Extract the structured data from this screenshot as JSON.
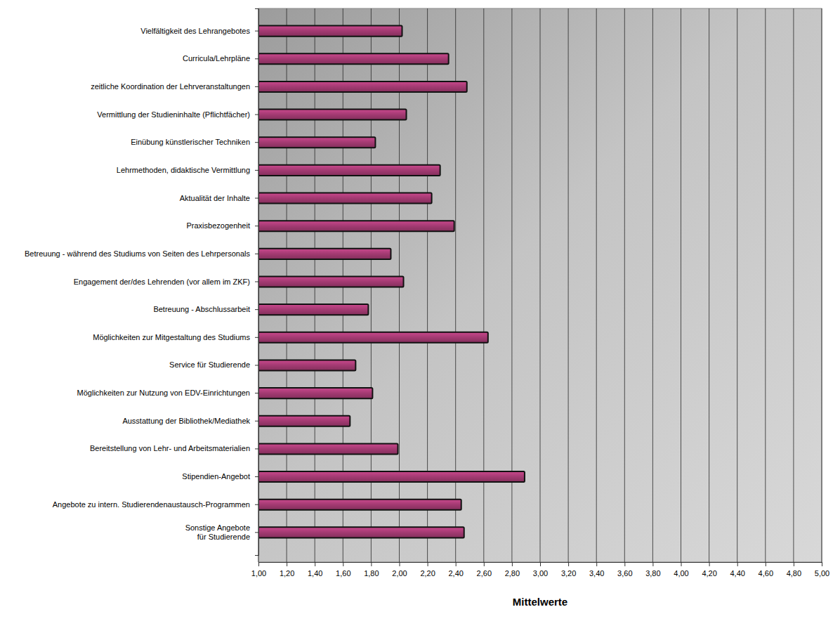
{
  "chart_data": {
    "type": "bar",
    "orientation": "horizontal",
    "categories": [
      "Vielfältigkeit des Lehrangebotes",
      "Curricula/Lehrpläne",
      "zeitliche Koordination der Lehrveranstaltungen",
      "Vermittlung der Studieninhalte (Pflichtfächer)",
      "Einübung künstlerischer Techniken",
      "Lehrmethoden, didaktische Vermittlung",
      "Aktualität der Inhalte",
      "Praxisbezogenheit",
      "Betreuung - während des Studiums von Seiten des Lehrpersonals",
      "Engagement der/des Lehrenden (vor allem im ZKF)",
      "Betreuung - Abschlussarbeit",
      "Möglichkeiten zur Mitgestaltung des Studiums",
      "Service für Studierende",
      "Möglichkeiten zur Nutzung von EDV-Einrichtungen",
      "Ausstattung der Bibliothek/Mediathek",
      "Bereitstellung von Lehr- und Arbeitsmaterialien",
      "Stipendien-Angebot",
      "Angebote zu intern. Studierendenaustausch-Programmen",
      "Sonstige Angebote\nfür Studierende"
    ],
    "values": [
      2.02,
      2.35,
      2.48,
      2.05,
      1.83,
      2.29,
      2.23,
      2.39,
      1.94,
      2.03,
      1.78,
      2.63,
      1.69,
      1.81,
      1.65,
      1.99,
      2.89,
      2.44,
      2.46
    ],
    "color": "#a33a72",
    "xlabel": "Mittelwerte",
    "xlim": [
      1,
      5
    ],
    "xticks": [
      {
        "value": 1,
        "label": "1,00"
      },
      {
        "value": 1.2,
        "label": "1,20"
      },
      {
        "value": 1.4,
        "label": "1,40"
      },
      {
        "value": 1.6,
        "label": "1,60"
      },
      {
        "value": 1.8,
        "label": "1,80"
      },
      {
        "value": 2,
        "label": "2,00"
      },
      {
        "value": 2.2,
        "label": "2,20"
      },
      {
        "value": 2.4,
        "label": "2,40"
      },
      {
        "value": 2.6,
        "label": "2,60"
      },
      {
        "value": 2.8,
        "label": "2,80"
      },
      {
        "value": 3,
        "label": "3,00"
      },
      {
        "value": 3.2,
        "label": "3,20"
      },
      {
        "value": 3.4,
        "label": "3,40"
      },
      {
        "value": 3.6,
        "label": "3,60"
      },
      {
        "value": 3.8,
        "label": "3,80"
      },
      {
        "value": 4,
        "label": "4,00"
      },
      {
        "value": 4.2,
        "label": "4,20"
      },
      {
        "value": 4.4,
        "label": "4,40"
      },
      {
        "value": 4.6,
        "label": "4,60"
      },
      {
        "value": 4.8,
        "label": "4,80"
      },
      {
        "value": 5,
        "label": "5,00"
      }
    ],
    "grid": true
  }
}
